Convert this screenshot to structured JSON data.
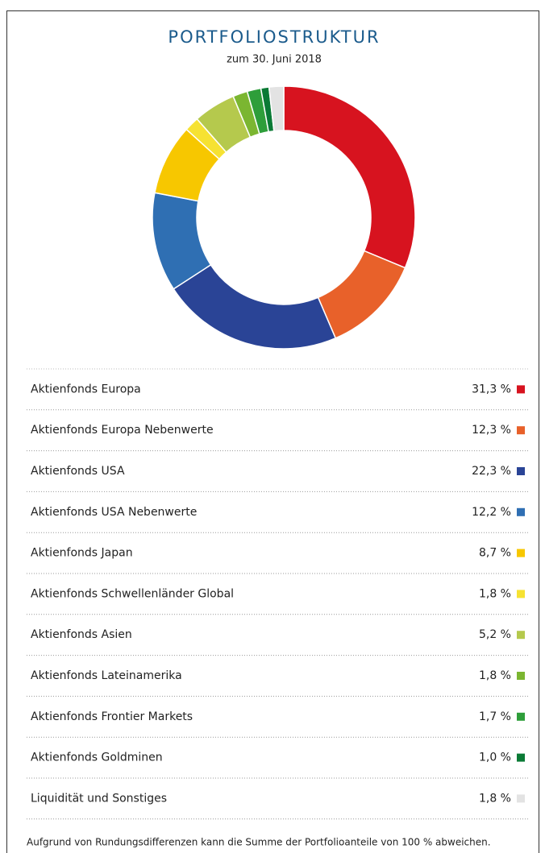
{
  "chart_data": {
    "type": "donut",
    "title": "PORTFOLIOSTRUKTUR",
    "subtitle": "zum 30. Juni 2018",
    "categories": [
      "Aktienfonds Europa",
      "Aktienfonds Europa Nebenwerte",
      "Aktienfonds USA",
      "Aktienfonds USA Nebenwerte",
      "Aktienfonds Japan",
      "Aktienfonds Schwellenländer Global",
      "Aktienfonds Asien",
      "Aktienfonds Lateinamerika",
      "Aktienfonds Frontier Markets",
      "Aktienfonds Goldminen",
      "Liquidität und Sonstiges"
    ],
    "values": [
      31.3,
      12.3,
      22.3,
      12.2,
      8.7,
      1.8,
      5.2,
      1.8,
      1.7,
      1.0,
      1.8
    ],
    "value_labels": [
      "31,3 %",
      "12,3 %",
      "22,3 %",
      "12,2 %",
      "8,7 %",
      "1,8 %",
      "5,2 %",
      "1,8 %",
      "1,7 %",
      "1,0 %",
      "1,8 %"
    ],
    "colors": [
      "#d7131f",
      "#e8612a",
      "#2a4496",
      "#2f6fb3",
      "#f7c700",
      "#f6e232",
      "#b5c94d",
      "#7bb631",
      "#2e9e3a",
      "#0a7a35",
      "#e3e3e3"
    ],
    "note": "Aufgrund von Rundungsdifferenzen kann die Summe der Portfolioanteile von 100 % abweichen."
  }
}
